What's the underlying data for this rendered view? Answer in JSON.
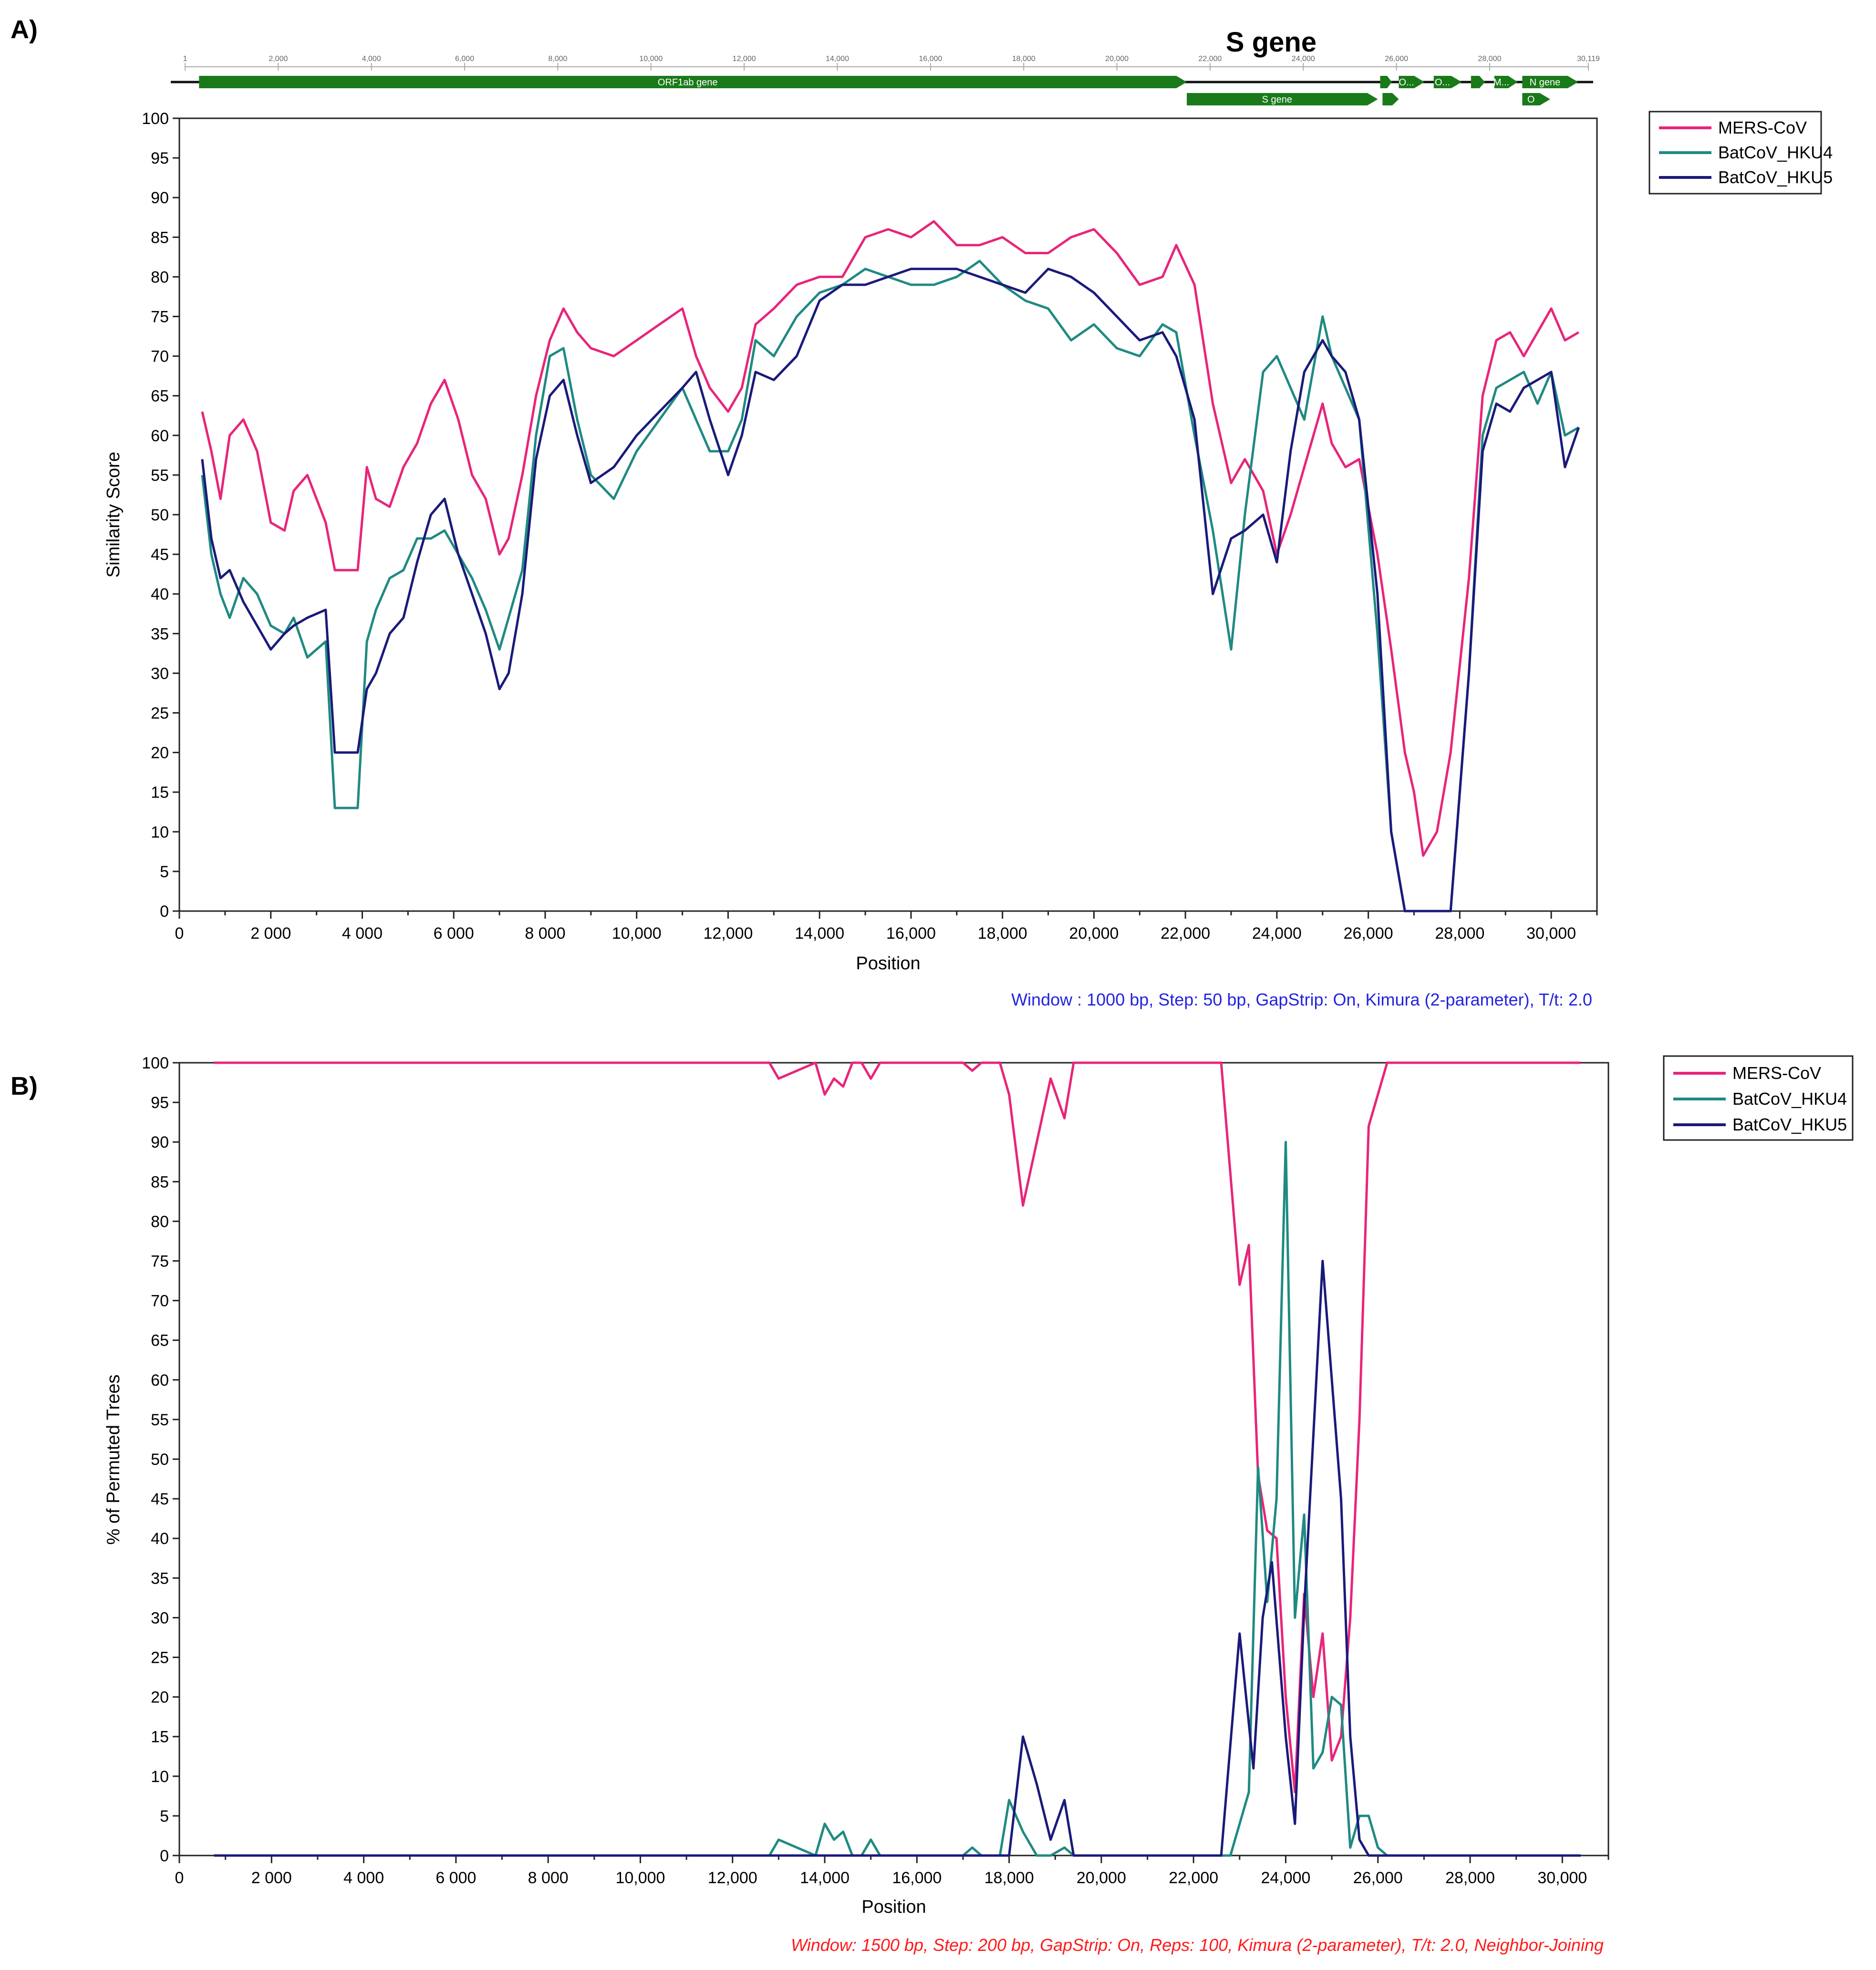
{
  "panel_a_label": "A)",
  "panel_b_label": "B)",
  "sgene_title": "S gene",
  "genome_map": {
    "ticks": [
      "1",
      "2,000",
      "4,000",
      "6,000",
      "8,000",
      "10,000",
      "12,000",
      "14,000",
      "16,000",
      "18,000",
      "20,000",
      "22,000",
      "24,000",
      "26,000",
      "28,000",
      "30,119"
    ],
    "genes": [
      {
        "name": "ORF1ab gene",
        "start": 300,
        "end": 21500,
        "row": 0
      },
      {
        "name": "S gene",
        "start": 21500,
        "end": 25600,
        "row": 1
      },
      {
        "name": "",
        "start": 25650,
        "end": 25900,
        "row": 0
      },
      {
        "name": "",
        "start": 25700,
        "end": 26050,
        "row": 1
      },
      {
        "name": "O...",
        "start": 26050,
        "end": 26600,
        "row": 0
      },
      {
        "name": "O...",
        "start": 26800,
        "end": 27400,
        "row": 0
      },
      {
        "name": "",
        "start": 27600,
        "end": 27900,
        "row": 0
      },
      {
        "name": "M...",
        "start": 28100,
        "end": 28600,
        "row": 0
      },
      {
        "name": "N gene",
        "start": 28700,
        "end": 29900,
        "row": 0
      },
      {
        "name": "O",
        "start": 28700,
        "end": 29300,
        "row": 1
      }
    ],
    "color": "#1a7a1a",
    "length": 30119
  },
  "chart_data": [
    {
      "type": "line",
      "xlabel": "Position",
      "ylabel": "Similarity Score",
      "xlim": [
        0,
        31000
      ],
      "ylim": [
        0,
        100
      ],
      "xticks": [
        0,
        2000,
        4000,
        6000,
        8000,
        10000,
        12000,
        14000,
        16000,
        18000,
        20000,
        22000,
        24000,
        26000,
        28000,
        30000
      ],
      "xtick_labels": [
        "0",
        "2 000",
        "4 000",
        "6 000",
        "8 000",
        "10,000",
        "12,000",
        "14,000",
        "16,000",
        "18,000",
        "20,000",
        "22,000",
        "24,000",
        "26,000",
        "28,000",
        "30,000"
      ],
      "yticks": [
        0,
        5,
        10,
        15,
        20,
        25,
        30,
        35,
        40,
        45,
        50,
        55,
        60,
        65,
        70,
        75,
        80,
        85,
        90,
        95,
        100
      ],
      "note": "Window : 1000 bp, Step: 50 bp, GapStrip: On, Kimura (2-parameter), T/t: 2.0",
      "legend_position": "outside right",
      "series": [
        {
          "name": "MERS-CoV",
          "color": "#e8257a",
          "x": [
            500,
            700,
            900,
            1100,
            1400,
            1700,
            2000,
            2300,
            2500,
            2800,
            3200,
            3400,
            3600,
            3900,
            4100,
            4300,
            4600,
            4900,
            5200,
            5500,
            5800,
            6100,
            6400,
            6700,
            7000,
            7200,
            7500,
            7800,
            8100,
            8400,
            8700,
            9000,
            9500,
            10000,
            10500,
            11000,
            11300,
            11600,
            12000,
            12300,
            12600,
            13000,
            13500,
            14000,
            14500,
            15000,
            15500,
            16000,
            16500,
            17000,
            17500,
            18000,
            18500,
            19000,
            19500,
            20000,
            20500,
            21000,
            21500,
            21800,
            22200,
            22600,
            23000,
            23300,
            23700,
            24000,
            24300,
            24600,
            25000,
            25200,
            25500,
            25800,
            26200,
            26500,
            26800,
            27000,
            27200,
            27500,
            27800,
            28200,
            28500,
            28800,
            29100,
            29400,
            29700,
            30000,
            30300,
            30600
          ],
          "y": [
            63,
            58,
            52,
            60,
            62,
            58,
            49,
            48,
            53,
            55,
            49,
            43,
            43,
            43,
            56,
            52,
            51,
            56,
            59,
            64,
            67,
            62,
            55,
            52,
            45,
            47,
            55,
            65,
            72,
            76,
            73,
            71,
            70,
            72,
            74,
            76,
            70,
            66,
            63,
            66,
            74,
            76,
            79,
            80,
            80,
            85,
            86,
            85,
            87,
            84,
            84,
            85,
            83,
            83,
            85,
            86,
            83,
            79,
            80,
            84,
            79,
            64,
            54,
            57,
            53,
            45,
            50,
            56,
            64,
            59,
            56,
            57,
            45,
            33,
            20,
            15,
            7,
            10,
            20,
            42,
            65,
            72,
            73,
            70,
            73,
            76,
            72,
            73
          ]
        },
        {
          "name": "BatCoV_HKU4",
          "color": "#1f8a82",
          "x": [
            500,
            700,
            900,
            1100,
            1400,
            1700,
            2000,
            2300,
            2500,
            2800,
            3200,
            3400,
            3600,
            3900,
            4100,
            4300,
            4600,
            4900,
            5200,
            5500,
            5800,
            6100,
            6400,
            6700,
            7000,
            7200,
            7500,
            7800,
            8100,
            8400,
            8700,
            9000,
            9500,
            10000,
            10500,
            11000,
            11300,
            11600,
            12000,
            12300,
            12600,
            13000,
            13500,
            14000,
            14500,
            15000,
            15500,
            16000,
            16500,
            17000,
            17500,
            18000,
            18500,
            19000,
            19500,
            20000,
            20500,
            21000,
            21500,
            21800,
            22200,
            22600,
            23000,
            23300,
            23700,
            24000,
            24300,
            24600,
            25000,
            25200,
            25500,
            25800,
            26200,
            26500,
            26800,
            27000,
            27200,
            27500,
            27800,
            28200,
            28500,
            28800,
            29100,
            29400,
            29700,
            30000,
            30300,
            30600
          ],
          "y": [
            55,
            45,
            40,
            37,
            42,
            40,
            36,
            35,
            37,
            32,
            34,
            13,
            13,
            13,
            34,
            38,
            42,
            43,
            47,
            47,
            48,
            45,
            42,
            38,
            33,
            37,
            43,
            60,
            70,
            71,
            62,
            55,
            52,
            58,
            62,
            66,
            62,
            58,
            58,
            62,
            72,
            70,
            75,
            78,
            79,
            81,
            80,
            79,
            79,
            80,
            82,
            79,
            77,
            76,
            72,
            74,
            71,
            70,
            74,
            73,
            60,
            48,
            33,
            50,
            68,
            70,
            66,
            62,
            75,
            70,
            66,
            62,
            35,
            10,
            0,
            0,
            0,
            0,
            0,
            30,
            60,
            66,
            67,
            68,
            64,
            68,
            60,
            61
          ]
        },
        {
          "name": "BatCoV_HKU5",
          "color": "#1a1a7a",
          "x": [
            500,
            700,
            900,
            1100,
            1400,
            1700,
            2000,
            2300,
            2500,
            2800,
            3200,
            3400,
            3600,
            3900,
            4100,
            4300,
            4600,
            4900,
            5200,
            5500,
            5800,
            6100,
            6400,
            6700,
            7000,
            7200,
            7500,
            7800,
            8100,
            8400,
            8700,
            9000,
            9500,
            10000,
            10500,
            11000,
            11300,
            11600,
            12000,
            12300,
            12600,
            13000,
            13500,
            14000,
            14500,
            15000,
            15500,
            16000,
            16500,
            17000,
            17500,
            18000,
            18500,
            19000,
            19500,
            20000,
            20500,
            21000,
            21500,
            21800,
            22200,
            22600,
            23000,
            23300,
            23700,
            24000,
            24300,
            24600,
            25000,
            25200,
            25500,
            25800,
            26200,
            26500,
            26800,
            27000,
            27200,
            27500,
            27800,
            28200,
            28500,
            28800,
            29100,
            29400,
            29700,
            30000,
            30300,
            30600
          ],
          "y": [
            57,
            47,
            42,
            43,
            39,
            36,
            33,
            35,
            36,
            37,
            38,
            20,
            20,
            20,
            28,
            30,
            35,
            37,
            44,
            50,
            52,
            45,
            40,
            35,
            28,
            30,
            40,
            57,
            65,
            67,
            60,
            54,
            56,
            60,
            63,
            66,
            68,
            62,
            55,
            60,
            68,
            67,
            70,
            77,
            79,
            79,
            80,
            81,
            81,
            81,
            80,
            79,
            78,
            81,
            80,
            78,
            75,
            72,
            73,
            70,
            62,
            40,
            47,
            48,
            50,
            44,
            58,
            68,
            72,
            70,
            68,
            62,
            40,
            10,
            0,
            0,
            0,
            0,
            0,
            30,
            58,
            64,
            63,
            66,
            67,
            68,
            56,
            61
          ]
        }
      ]
    },
    {
      "type": "line",
      "xlabel": "Position",
      "ylabel": "% of Permuted Trees",
      "xlim": [
        0,
        31000
      ],
      "ylim": [
        0,
        100
      ],
      "xticks": [
        0,
        2000,
        4000,
        6000,
        8000,
        10000,
        12000,
        14000,
        16000,
        18000,
        20000,
        22000,
        24000,
        26000,
        28000,
        30000
      ],
      "xtick_labels": [
        "0",
        "2 000",
        "4 000",
        "6 000",
        "8 000",
        "10,000",
        "12,000",
        "14,000",
        "16,000",
        "18,000",
        "20,000",
        "22,000",
        "24,000",
        "26,000",
        "28,000",
        "30,000"
      ],
      "yticks": [
        0,
        5,
        10,
        15,
        20,
        25,
        30,
        35,
        40,
        45,
        50,
        55,
        60,
        65,
        70,
        75,
        80,
        85,
        90,
        95,
        100
      ],
      "note": "Window: 1500 bp, Step: 200 bp, GapStrip: On, Reps: 100, Kimura (2-parameter), T/t: 2.0, Neighbor-Joining",
      "legend_position": "outside right",
      "series": [
        {
          "name": "MERS-CoV",
          "color": "#e8257a",
          "x": [
            750,
            12800,
            13000,
            13400,
            13800,
            14000,
            14200,
            14400,
            14600,
            14800,
            15000,
            15200,
            16000,
            17000,
            17200,
            17400,
            17800,
            18000,
            18300,
            18600,
            18900,
            19200,
            19400,
            19600,
            20000,
            22600,
            23000,
            23200,
            23400,
            23600,
            23800,
            24000,
            24200,
            24400,
            24600,
            24800,
            25000,
            25200,
            25400,
            25600,
            25800,
            26200,
            30400
          ],
          "y": [
            100,
            100,
            98,
            99,
            100,
            96,
            98,
            97,
            100,
            100,
            98,
            100,
            100,
            100,
            99,
            100,
            100,
            96,
            82,
            90,
            98,
            93,
            100,
            100,
            100,
            100,
            72,
            77,
            48,
            41,
            40,
            20,
            8,
            33,
            20,
            28,
            12,
            15,
            30,
            55,
            92,
            100,
            100
          ]
        },
        {
          "name": "BatCoV_HKU4",
          "color": "#1f8a82",
          "x": [
            750,
            12800,
            13000,
            13400,
            13800,
            14000,
            14200,
            14400,
            14600,
            14800,
            15000,
            15200,
            17000,
            17200,
            17400,
            17800,
            18000,
            18300,
            18600,
            18900,
            19200,
            19400,
            22800,
            23200,
            23400,
            23600,
            23800,
            24000,
            24200,
            24400,
            24600,
            24800,
            25000,
            25200,
            25400,
            25600,
            25800,
            26000,
            26200,
            26400,
            30400
          ],
          "y": [
            0,
            0,
            2,
            1,
            0,
            4,
            2,
            3,
            0,
            0,
            2,
            0,
            0,
            1,
            0,
            0,
            7,
            3,
            0,
            0,
            1,
            0,
            0,
            8,
            49,
            32,
            45,
            90,
            30,
            43,
            11,
            13,
            20,
            19,
            1,
            5,
            5,
            1,
            0,
            0,
            0
          ]
        },
        {
          "name": "BatCoV_HKU5",
          "color": "#1a1a7a",
          "x": [
            750,
            17800,
            18000,
            18300,
            18600,
            18900,
            19200,
            19400,
            22600,
            23000,
            23300,
            23500,
            23700,
            24000,
            24200,
            24400,
            24800,
            25200,
            25400,
            25600,
            25800,
            26000,
            30400
          ],
          "y": [
            0,
            0,
            0,
            15,
            9,
            2,
            7,
            0,
            0,
            28,
            11,
            30,
            37,
            15,
            4,
            31,
            75,
            45,
            15,
            2,
            0,
            0,
            0
          ]
        }
      ]
    }
  ]
}
